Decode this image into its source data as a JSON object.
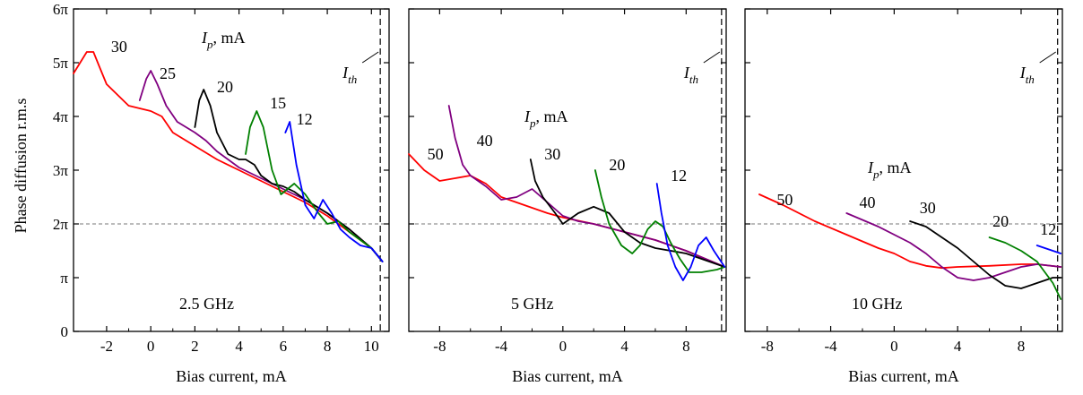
{
  "figure": {
    "ylabel": "Phase diffusion r.m.s",
    "ythreshold_label": "2π",
    "ylim": [
      0,
      6
    ],
    "yticks": [
      0,
      1,
      2,
      3,
      4,
      5,
      6
    ],
    "ytick_labels": [
      "0",
      "π",
      "2π",
      "3π",
      "4π",
      "5π",
      "6π"
    ]
  },
  "chart_data": [
    {
      "type": "line",
      "freq_label": "2.5 GHz",
      "xlabel": "Bias current, mA",
      "xlim": [
        -3.5,
        10.8
      ],
      "xticks": [
        -2,
        0,
        2,
        4,
        6,
        8,
        10
      ],
      "legend_title": {
        "sym": "I",
        "sub": "p",
        "unit": ", mA"
      },
      "threshold": {
        "x": 10.4,
        "sym": "I",
        "sub": "th"
      },
      "hline_y": 2,
      "series": [
        {
          "name": "30",
          "color": "#ff0000",
          "label_pos": [
            -1.8,
            5.2
          ],
          "points": [
            [
              -3.5,
              4.8
            ],
            [
              -3.2,
              5.0
            ],
            [
              -2.9,
              5.2
            ],
            [
              -2.6,
              5.2
            ],
            [
              -2.3,
              4.9
            ],
            [
              -2.0,
              4.6
            ],
            [
              -1.5,
              4.4
            ],
            [
              -1.0,
              4.2
            ],
            [
              -0.5,
              4.15
            ],
            [
              0,
              4.1
            ],
            [
              0.5,
              4.0
            ],
            [
              1.0,
              3.7
            ],
            [
              2.0,
              3.45
            ],
            [
              3.0,
              3.2
            ],
            [
              4.0,
              3.0
            ],
            [
              5.0,
              2.8
            ],
            [
              6.0,
              2.6
            ],
            [
              7.0,
              2.4
            ],
            [
              8.0,
              2.15
            ],
            [
              9.0,
              1.85
            ],
            [
              10.0,
              1.55
            ],
            [
              10.5,
              1.3
            ]
          ]
        },
        {
          "name": "25",
          "color": "#800080",
          "label_pos": [
            0.4,
            4.7
          ],
          "points": [
            [
              -0.5,
              4.3
            ],
            [
              -0.2,
              4.7
            ],
            [
              0,
              4.85
            ],
            [
              0.3,
              4.6
            ],
            [
              0.7,
              4.2
            ],
            [
              1.2,
              3.9
            ],
            [
              2.0,
              3.7
            ],
            [
              2.5,
              3.55
            ],
            [
              3.0,
              3.35
            ],
            [
              4.0,
              3.05
            ],
            [
              5.0,
              2.85
            ],
            [
              6.0,
              2.65
            ],
            [
              7.0,
              2.45
            ],
            [
              8.0,
              2.2
            ],
            [
              9.0,
              1.9
            ],
            [
              10.0,
              1.55
            ],
            [
              10.5,
              1.3
            ]
          ]
        },
        {
          "name": "20",
          "color": "#000000",
          "label_pos": [
            3.0,
            4.45
          ],
          "points": [
            [
              2.0,
              3.8
            ],
            [
              2.2,
              4.3
            ],
            [
              2.4,
              4.5
            ],
            [
              2.7,
              4.2
            ],
            [
              3.0,
              3.7
            ],
            [
              3.5,
              3.3
            ],
            [
              4.0,
              3.2
            ],
            [
              4.3,
              3.2
            ],
            [
              4.7,
              3.1
            ],
            [
              5.0,
              2.9
            ],
            [
              5.5,
              2.75
            ],
            [
              6.0,
              2.7
            ],
            [
              6.5,
              2.6
            ],
            [
              7.0,
              2.45
            ],
            [
              8.0,
              2.2
            ],
            [
              9.0,
              1.9
            ],
            [
              10.0,
              1.55
            ],
            [
              10.5,
              1.3
            ]
          ]
        },
        {
          "name": "15",
          "color": "#008000",
          "label_pos": [
            5.4,
            4.15
          ],
          "points": [
            [
              4.3,
              3.3
            ],
            [
              4.5,
              3.8
            ],
            [
              4.8,
              4.1
            ],
            [
              5.1,
              3.8
            ],
            [
              5.5,
              3.0
            ],
            [
              5.9,
              2.55
            ],
            [
              6.5,
              2.75
            ],
            [
              7.0,
              2.55
            ],
            [
              7.6,
              2.2
            ],
            [
              8.0,
              2.0
            ],
            [
              8.5,
              2.05
            ],
            [
              9.0,
              1.85
            ],
            [
              10.0,
              1.55
            ],
            [
              10.5,
              1.3
            ]
          ]
        },
        {
          "name": "12",
          "color": "#0000ff",
          "label_pos": [
            6.6,
            3.85
          ],
          "points": [
            [
              6.1,
              3.7
            ],
            [
              6.3,
              3.9
            ],
            [
              6.6,
              3.1
            ],
            [
              7.0,
              2.35
            ],
            [
              7.4,
              2.1
            ],
            [
              7.8,
              2.45
            ],
            [
              8.2,
              2.2
            ],
            [
              8.6,
              1.9
            ],
            [
              9.0,
              1.75
            ],
            [
              9.5,
              1.6
            ],
            [
              10.0,
              1.55
            ],
            [
              10.5,
              1.3
            ]
          ]
        }
      ]
    },
    {
      "type": "line",
      "freq_label": "5 GHz",
      "xlabel": "Bias current, mA",
      "xlim": [
        -10,
        10.6
      ],
      "xticks": [
        -8,
        -4,
        0,
        4,
        8
      ],
      "legend_title": {
        "sym": "I",
        "sub": "p",
        "unit": ", mA"
      },
      "threshold": {
        "x": 10.3,
        "sym": "I",
        "sub": "th"
      },
      "hline_y": 2,
      "series": [
        {
          "name": "50",
          "color": "#ff0000",
          "label_pos": [
            -8.8,
            3.2
          ],
          "points": [
            [
              -10,
              3.3
            ],
            [
              -9.0,
              3.0
            ],
            [
              -8.0,
              2.8
            ],
            [
              -7.0,
              2.85
            ],
            [
              -6.0,
              2.9
            ],
            [
              -5.0,
              2.75
            ],
            [
              -4.0,
              2.5
            ],
            [
              -3.0,
              2.4
            ],
            [
              -2.0,
              2.3
            ],
            [
              -1.0,
              2.2
            ],
            [
              0,
              2.12
            ],
            [
              2.0,
              2.0
            ],
            [
              4.0,
              1.85
            ],
            [
              6.0,
              1.7
            ],
            [
              8.0,
              1.5
            ],
            [
              10.5,
              1.2
            ]
          ]
        },
        {
          "name": "40",
          "color": "#800080",
          "label_pos": [
            -5.6,
            3.45
          ],
          "points": [
            [
              -7.4,
              4.2
            ],
            [
              -7.0,
              3.6
            ],
            [
              -6.5,
              3.1
            ],
            [
              -6.0,
              2.9
            ],
            [
              -5.0,
              2.7
            ],
            [
              -4.0,
              2.45
            ],
            [
              -3.0,
              2.5
            ],
            [
              -2.0,
              2.65
            ],
            [
              -1.0,
              2.4
            ],
            [
              0,
              2.15
            ],
            [
              1.0,
              2.05
            ],
            [
              2.0,
              2.0
            ],
            [
              4.0,
              1.85
            ],
            [
              6.0,
              1.7
            ],
            [
              8.0,
              1.5
            ],
            [
              10.5,
              1.2
            ]
          ]
        },
        {
          "name": "30",
          "color": "#000000",
          "label_pos": [
            -1.2,
            3.2
          ],
          "points": [
            [
              -2.1,
              3.2
            ],
            [
              -1.8,
              2.8
            ],
            [
              -1.3,
              2.5
            ],
            [
              -0.5,
              2.2
            ],
            [
              0,
              2.0
            ],
            [
              0.5,
              2.1
            ],
            [
              1.0,
              2.2
            ],
            [
              2.0,
              2.32
            ],
            [
              3.0,
              2.2
            ],
            [
              4.0,
              1.85
            ],
            [
              5.0,
              1.65
            ],
            [
              6.0,
              1.55
            ],
            [
              8.0,
              1.45
            ],
            [
              10.5,
              1.2
            ]
          ]
        },
        {
          "name": "20",
          "color": "#008000",
          "label_pos": [
            3.0,
            3.0
          ],
          "points": [
            [
              2.1,
              3.0
            ],
            [
              2.5,
              2.5
            ],
            [
              3.0,
              2.0
            ],
            [
              3.8,
              1.6
            ],
            [
              4.5,
              1.45
            ],
            [
              5.0,
              1.6
            ],
            [
              5.5,
              1.9
            ],
            [
              6.0,
              2.05
            ],
            [
              6.5,
              1.95
            ],
            [
              7.0,
              1.65
            ],
            [
              7.6,
              1.35
            ],
            [
              8.2,
              1.1
            ],
            [
              9.0,
              1.1
            ],
            [
              10.0,
              1.15
            ],
            [
              10.5,
              1.2
            ]
          ]
        },
        {
          "name": "12",
          "color": "#0000ff",
          "label_pos": [
            7.0,
            2.8
          ],
          "points": [
            [
              6.1,
              2.75
            ],
            [
              6.4,
              2.2
            ],
            [
              6.8,
              1.6
            ],
            [
              7.3,
              1.2
            ],
            [
              7.8,
              0.95
            ],
            [
              8.3,
              1.2
            ],
            [
              8.8,
              1.6
            ],
            [
              9.3,
              1.75
            ],
            [
              9.8,
              1.5
            ],
            [
              10.5,
              1.2
            ]
          ]
        }
      ]
    },
    {
      "type": "line",
      "freq_label": "10 GHz",
      "xlabel": "Bias current, mA",
      "xlim": [
        -9.4,
        10.6
      ],
      "xticks": [
        -8,
        -4,
        0,
        4,
        8
      ],
      "legend_title": {
        "sym": "I",
        "sub": "p",
        "unit": ", mA"
      },
      "threshold": {
        "x": 10.3,
        "sym": "I",
        "sub": "th"
      },
      "hline_y": 2,
      "series": [
        {
          "name": "50",
          "color": "#ff0000",
          "label_pos": [
            -7.4,
            2.35
          ],
          "points": [
            [
              -8.5,
              2.55
            ],
            [
              -7.0,
              2.35
            ],
            [
              -5.0,
              2.05
            ],
            [
              -3.0,
              1.8
            ],
            [
              -1.0,
              1.55
            ],
            [
              0,
              1.45
            ],
            [
              1.0,
              1.3
            ],
            [
              2.0,
              1.22
            ],
            [
              3.0,
              1.18
            ],
            [
              4.0,
              1.2
            ],
            [
              6.0,
              1.22
            ],
            [
              8.0,
              1.25
            ],
            [
              9.0,
              1.25
            ],
            [
              10.5,
              1.2
            ]
          ]
        },
        {
          "name": "40",
          "color": "#800080",
          "label_pos": [
            -2.2,
            2.3
          ],
          "points": [
            [
              -3.0,
              2.2
            ],
            [
              -1.0,
              1.95
            ],
            [
              1.0,
              1.65
            ],
            [
              2.0,
              1.45
            ],
            [
              3.0,
              1.2
            ],
            [
              4.0,
              1.0
            ],
            [
              5.0,
              0.95
            ],
            [
              6.0,
              1.0
            ],
            [
              7.0,
              1.1
            ],
            [
              8.0,
              1.2
            ],
            [
              9.0,
              1.25
            ],
            [
              10.5,
              1.2
            ]
          ]
        },
        {
          "name": "30",
          "color": "#000000",
          "label_pos": [
            1.6,
            2.2
          ],
          "points": [
            [
              1.0,
              2.05
            ],
            [
              2.0,
              1.95
            ],
            [
              3.0,
              1.75
            ],
            [
              4.0,
              1.55
            ],
            [
              5.0,
              1.3
            ],
            [
              6.0,
              1.05
            ],
            [
              7.0,
              0.85
            ],
            [
              8.0,
              0.8
            ],
            [
              9.0,
              0.9
            ],
            [
              10.0,
              1.0
            ],
            [
              10.5,
              1.0
            ]
          ]
        },
        {
          "name": "20",
          "color": "#008000",
          "label_pos": [
            6.2,
            1.95
          ],
          "points": [
            [
              6.0,
              1.75
            ],
            [
              7.0,
              1.65
            ],
            [
              8.0,
              1.5
            ],
            [
              9.0,
              1.3
            ],
            [
              10.0,
              0.9
            ],
            [
              10.5,
              0.6
            ]
          ]
        },
        {
          "name": "12",
          "color": "#0000ff",
          "label_pos": [
            9.2,
            1.8
          ],
          "points": [
            [
              9.0,
              1.6
            ],
            [
              9.5,
              1.55
            ],
            [
              10.0,
              1.5
            ],
            [
              10.5,
              1.45
            ]
          ]
        }
      ]
    }
  ]
}
